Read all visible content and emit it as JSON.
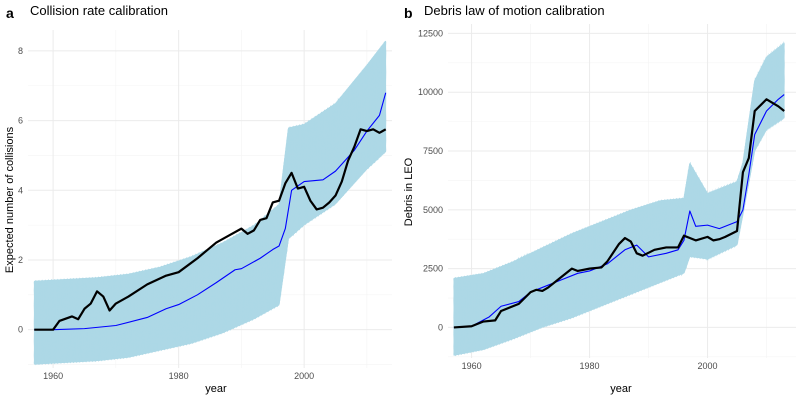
{
  "colors": {
    "band": "#add8e6",
    "model_line": "#0000ff",
    "observed_line": "#000000",
    "grid": "#ebebeb"
  },
  "chart_data": [
    {
      "type": "line",
      "panel_label": "a",
      "title": "Collision rate calibration",
      "xlabel": "year",
      "ylabel": "Expected number of collisions",
      "xlim": [
        1956,
        2014
      ],
      "ylim": [
        -1.1,
        8.6
      ],
      "x_ticks": [
        1960,
        1980,
        2000
      ],
      "y_ticks": [
        0,
        2,
        4,
        6,
        8
      ],
      "grid": true,
      "band": {
        "name": "",
        "x": [
          1957,
          1962,
          1967,
          1972,
          1977,
          1982,
          1987,
          1992,
          1996,
          1997.5,
          2000,
          2005,
          2010,
          2013
        ],
        "lower": [
          -1.0,
          -0.95,
          -0.9,
          -0.8,
          -0.6,
          -0.4,
          -0.1,
          0.3,
          0.7,
          2.6,
          3.0,
          3.6,
          4.6,
          5.1
        ],
        "upper": [
          1.4,
          1.45,
          1.5,
          1.6,
          1.8,
          2.1,
          2.5,
          3.0,
          3.6,
          5.8,
          5.9,
          6.5,
          7.6,
          8.3
        ]
      },
      "series": [
        {
          "name": "",
          "role": "model",
          "x": [
            1957,
            1960,
            1965,
            1970,
            1975,
            1978,
            1980,
            1983,
            1986,
            1989,
            1990,
            1993,
            1995,
            1996,
            1997,
            1998,
            2000,
            2003,
            2005,
            2008,
            2010,
            2012,
            2013
          ],
          "values": [
            0.0,
            0.0,
            0.03,
            0.12,
            0.35,
            0.6,
            0.72,
            1.0,
            1.35,
            1.72,
            1.75,
            2.05,
            2.3,
            2.4,
            2.9,
            4.0,
            4.25,
            4.3,
            4.55,
            5.15,
            5.7,
            6.15,
            6.8
          ]
        },
        {
          "name": "",
          "role": "observed",
          "x": [
            1957,
            1960,
            1961,
            1963,
            1964,
            1965,
            1966,
            1967,
            1968,
            1969,
            1970,
            1972,
            1975,
            1978,
            1980,
            1983,
            1986,
            1988,
            1990,
            1991,
            1992,
            1993,
            1994,
            1995,
            1996,
            1997,
            1998,
            1999,
            2000,
            2001,
            2002,
            2003,
            2004,
            2005,
            2006,
            2007,
            2008,
            2009,
            2010,
            2011,
            2012,
            2013
          ],
          "values": [
            0.0,
            0.0,
            0.25,
            0.38,
            0.3,
            0.6,
            0.75,
            1.1,
            0.95,
            0.55,
            0.75,
            0.95,
            1.3,
            1.55,
            1.65,
            2.05,
            2.5,
            2.7,
            2.9,
            2.75,
            2.85,
            3.15,
            3.2,
            3.65,
            3.7,
            4.2,
            4.5,
            4.05,
            4.1,
            3.7,
            3.45,
            3.5,
            3.65,
            3.85,
            4.25,
            4.85,
            5.25,
            5.75,
            5.7,
            5.75,
            5.65,
            5.75
          ]
        }
      ]
    },
    {
      "type": "line",
      "panel_label": "b",
      "title": "Debris law of motion calibration",
      "xlabel": "year",
      "ylabel": "Debris in LEO",
      "xlim": [
        1956,
        2015
      ],
      "ylim": [
        -1300,
        12900
      ],
      "x_ticks": [
        1960,
        1980,
        2000
      ],
      "y_ticks": [
        0,
        2500,
        5000,
        7500,
        10000,
        12500
      ],
      "grid": true,
      "band": {
        "name": "",
        "x": [
          1957,
          1962,
          1967,
          1972,
          1977,
          1982,
          1987,
          1992,
          1996,
          1997,
          2000,
          2005,
          2006,
          2008,
          2010,
          2013
        ],
        "lower": [
          -1200,
          -950,
          -500,
          0,
          400,
          900,
          1400,
          1900,
          2300,
          3000,
          2900,
          3500,
          4800,
          7500,
          8400,
          8900
        ],
        "upper": [
          2100,
          2300,
          2800,
          3400,
          4000,
          4500,
          5000,
          5400,
          5500,
          7000,
          5700,
          6200,
          7000,
          10500,
          11500,
          12100
        ]
      },
      "series": [
        {
          "name": "",
          "role": "model",
          "x": [
            1957,
            1960,
            1963,
            1965,
            1968,
            1970,
            1972,
            1975,
            1978,
            1980,
            1983,
            1986,
            1988,
            1990,
            1993,
            1995,
            1996,
            1997,
            1998,
            2000,
            2002,
            2005,
            2006,
            2007,
            2008,
            2010,
            2012,
            2013
          ],
          "values": [
            0,
            50,
            450,
            900,
            1100,
            1500,
            1700,
            2000,
            2300,
            2400,
            2700,
            3300,
            3500,
            3000,
            3150,
            3300,
            3700,
            4950,
            4300,
            4350,
            4200,
            4500,
            5000,
            6500,
            8200,
            9200,
            9700,
            9900
          ]
        },
        {
          "name": "",
          "role": "observed",
          "x": [
            1957,
            1960,
            1962,
            1964,
            1965,
            1968,
            1970,
            1971,
            1972,
            1973,
            1975,
            1977,
            1978,
            1980,
            1982,
            1983,
            1985,
            1986,
            1987,
            1988,
            1989,
            1991,
            1993,
            1995,
            1996,
            1997,
            1998,
            2000,
            2001,
            2002,
            2003,
            2005,
            2006,
            2007,
            2008,
            2010,
            2012,
            2013
          ],
          "values": [
            0,
            50,
            250,
            300,
            700,
            1000,
            1500,
            1600,
            1550,
            1700,
            2100,
            2500,
            2400,
            2500,
            2550,
            2800,
            3550,
            3800,
            3650,
            3150,
            3050,
            3300,
            3400,
            3400,
            3900,
            3800,
            3700,
            3850,
            3700,
            3750,
            3850,
            4100,
            6600,
            7200,
            9200,
            9700,
            9400,
            9200
          ]
        }
      ]
    }
  ]
}
